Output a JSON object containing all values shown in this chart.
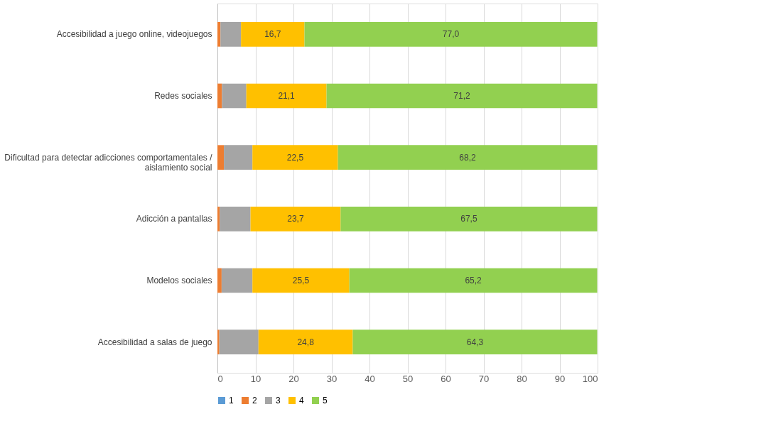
{
  "chart_data": {
    "type": "bar",
    "orientation": "horizontal",
    "stacked": true,
    "categories": [
      "Accesibilidad a juego online, videojuegos",
      "Redes sociales",
      "Dificultad para detectar adicciones comportamentales / aislamiento social",
      "Adicción a pantallas",
      "Modelos sociales",
      "Accesibilidad a salas de juego"
    ],
    "series": [
      {
        "name": "1",
        "color": "#5b9bd5",
        "values": [
          null,
          null,
          null,
          null,
          null,
          null
        ]
      },
      {
        "name": "2",
        "color": "#ed7d31",
        "values": [
          0.8,
          1.2,
          1.7,
          0.6,
          1.1,
          0.5
        ]
      },
      {
        "name": "3",
        "color": "#a5a5a5",
        "values": [
          5.4,
          6.4,
          7.5,
          8.1,
          8.1,
          10.3
        ]
      },
      {
        "name": "4",
        "color": "#ffc000",
        "values": [
          16.7,
          21.1,
          22.5,
          23.7,
          25.5,
          24.8
        ],
        "value_labels": [
          "16,7",
          "21,1",
          "22,5",
          "23,7",
          "25,5",
          "24,8"
        ]
      },
      {
        "name": "5",
        "color": "#92d050",
        "values": [
          77.0,
          71.2,
          68.2,
          67.5,
          65.2,
          64.3
        ],
        "value_labels": [
          "77,0",
          "71,2",
          "68,2",
          "67,5",
          "65,2",
          "64,3"
        ]
      }
    ],
    "xlim": [
      0,
      100
    ],
    "xticks": [
      0,
      10,
      20,
      30,
      40,
      50,
      60,
      70,
      80,
      90,
      100
    ],
    "grid": "x",
    "legend": "bottom"
  }
}
